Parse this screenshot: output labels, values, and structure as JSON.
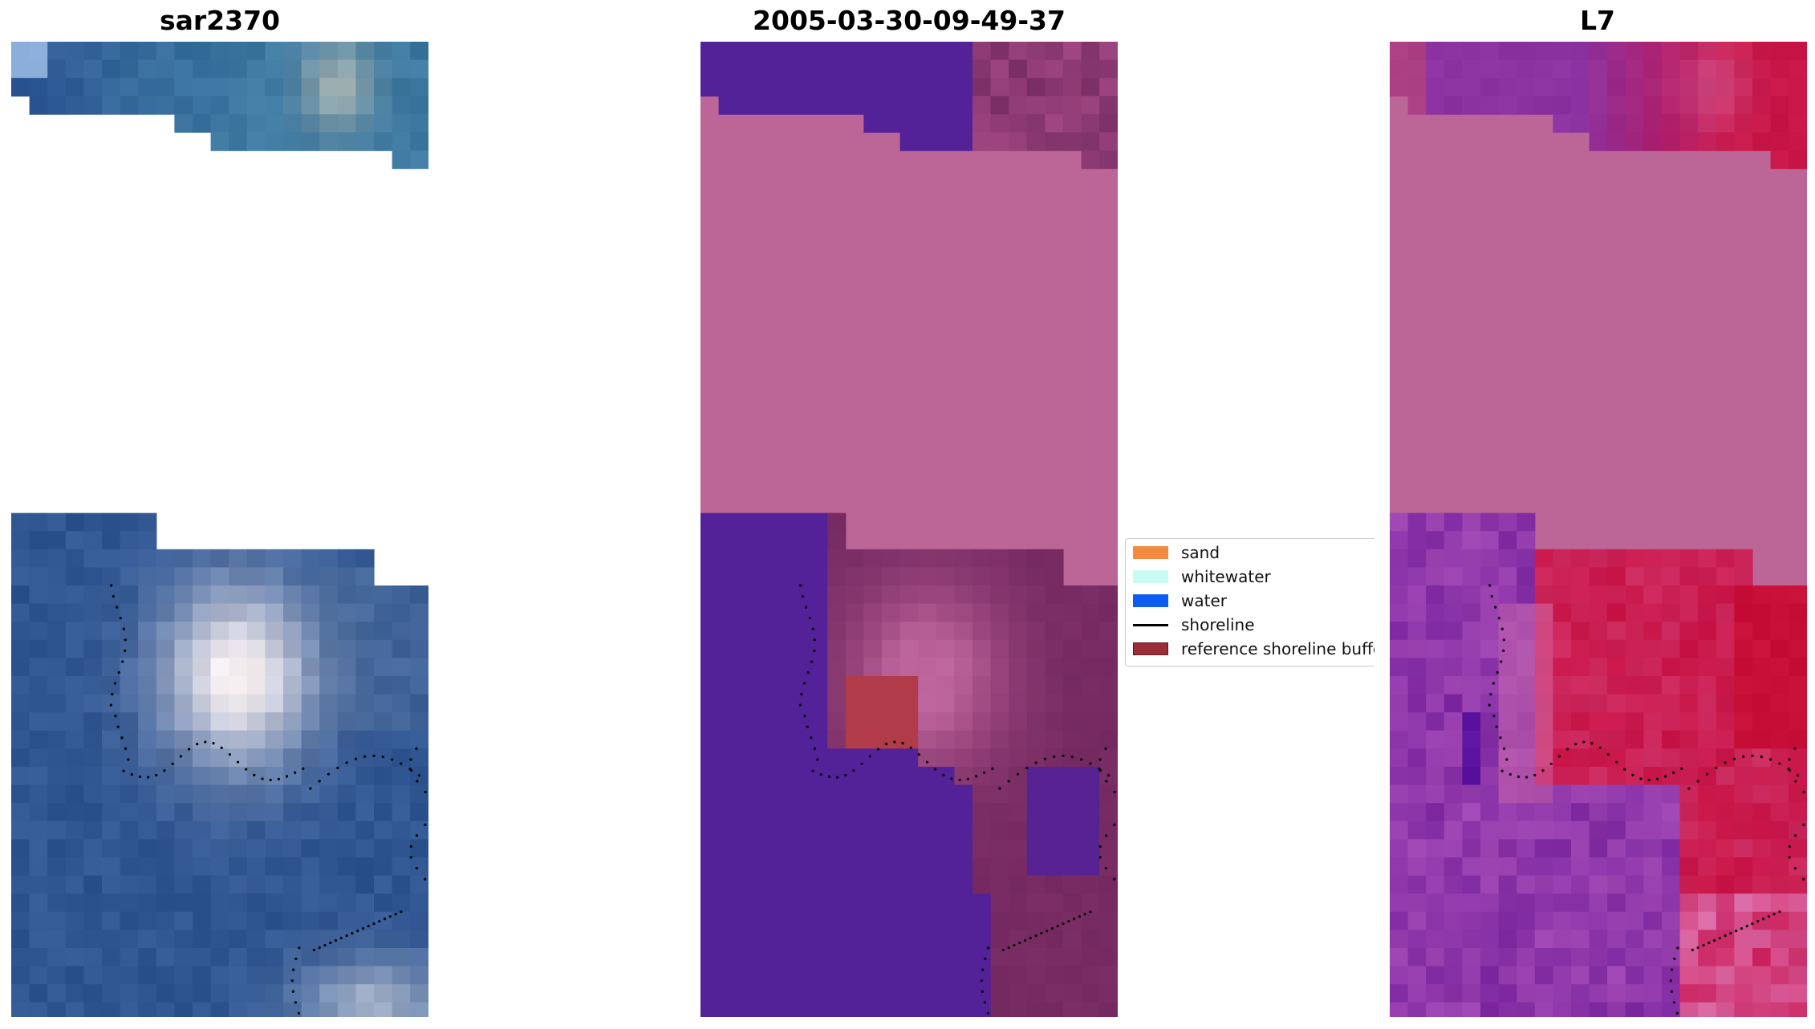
{
  "panels": [
    {
      "title": "sar2370",
      "kind": "rgb"
    },
    {
      "title": "2005-03-30-09-49-37",
      "kind": "classified"
    },
    {
      "title": "L7",
      "kind": "mndwi"
    }
  ],
  "legend": {
    "items": [
      {
        "label": "sand",
        "color": "#f28a3f",
        "type": "patch"
      },
      {
        "label": "whitewater",
        "color": "#c8fbf6",
        "type": "patch"
      },
      {
        "label": "water",
        "color": "#0d5ef0",
        "type": "patch"
      },
      {
        "label": "shoreline",
        "color": "#000000",
        "type": "line"
      },
      {
        "label": "reference shoreline buffer",
        "color": "#9b2d37",
        "type": "patch"
      }
    ]
  },
  "colors": {
    "masked_pink": "#bb6696",
    "water_purple": "#532298",
    "buffer_red": "#b23b4a",
    "ocean_blue": "#2f5592"
  }
}
